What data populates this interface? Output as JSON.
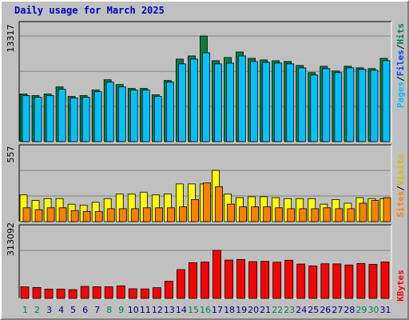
{
  "title": "Daily usage for March 2025",
  "colors": {
    "hits": "#00a0e0",
    "files": "#0040ff",
    "pages": "#00c0ff",
    "hits_bar": "#008040",
    "files_bar": "#00c0ff",
    "visits_bar": "#ffff00",
    "sites_bar": "#ff8000",
    "kbytes_bar": "#ff0000",
    "weekend_label": "#00805c",
    "weekday_label": "#000080"
  },
  "axis_labels": {
    "top_max": "13317",
    "mid_max": "557",
    "bottom_max": "313092",
    "right_top": [
      "Pages",
      "/",
      "Files",
      "/",
      "Hits"
    ],
    "right_mid": [
      "Sites",
      "/",
      "Visits"
    ],
    "right_bottom": [
      "KBytes"
    ]
  },
  "chart_data": {
    "type": "bar",
    "title": "Daily usage for March 2025",
    "categories": [
      "1",
      "2",
      "3",
      "4",
      "5",
      "6",
      "7",
      "8",
      "9",
      "10",
      "11",
      "12",
      "13",
      "14",
      "15",
      "16",
      "17",
      "18",
      "19",
      "20",
      "21",
      "22",
      "23",
      "24",
      "25",
      "26",
      "27",
      "28",
      "29",
      "30",
      "31"
    ],
    "weekend_days": [
      "1",
      "2",
      "8",
      "9",
      "15",
      "16",
      "22",
      "23",
      "29",
      "30"
    ],
    "panels": [
      {
        "name": "hits-files-pages",
        "ymax": 13317,
        "series": [
          {
            "name": "Hits",
            "values": [
              6000,
              5800,
              6000,
              6900,
              5700,
              5800,
              6500,
              7800,
              7200,
              6700,
              6700,
              5900,
              7700,
              10400,
              10800,
              13317,
              10200,
              10600,
              11300,
              10500,
              10300,
              10200,
              10100,
              9600,
              8700,
              9500,
              8900,
              9500,
              9300,
              9200,
              10500
            ]
          },
          {
            "name": "Files",
            "values": [
              5800,
              5600,
              5800,
              6600,
              5500,
              5600,
              6300,
              7500,
              6900,
              6500,
              6500,
              5700,
              7500,
              9800,
              10400,
              11200,
              9800,
              9900,
              10800,
              10100,
              10000,
              9900,
              9800,
              9300,
              8400,
              9200,
              8700,
              9300,
              9100,
              9000,
              10200
            ]
          },
          {
            "name": "Pages",
            "values": [
              5800,
              5600,
              5800,
              6600,
              5500,
              5600,
              6300,
              7500,
              6900,
              6500,
              6500,
              5700,
              7500,
              9800,
              10400,
              11200,
              9800,
              9900,
              10800,
              10100,
              10000,
              9900,
              9800,
              9300,
              8400,
              9200,
              8700,
              9300,
              9100,
              9000,
              10200
            ]
          }
        ]
      },
      {
        "name": "visits-sites",
        "ymax": 557,
        "series": [
          {
            "name": "Visits",
            "values": [
              290,
              230,
              250,
              250,
              190,
              180,
              210,
              250,
              300,
              300,
              320,
              290,
              300,
              410,
              410,
              410,
              557,
              300,
              260,
              270,
              270,
              260,
              250,
              250,
              250,
              190,
              240,
              200,
              260,
              250,
              250
            ]
          },
          {
            "name": "Sites",
            "values": [
              150,
              130,
              150,
              150,
              120,
              110,
              110,
              140,
              140,
              140,
              150,
              150,
              150,
              160,
              240,
              420,
              380,
              190,
              160,
              160,
              160,
              150,
              140,
              140,
              140,
              150,
              140,
              140,
              200,
              230,
              260
            ]
          }
        ]
      },
      {
        "name": "kbytes",
        "ymax": 313092,
        "series": [
          {
            "name": "KBytes",
            "values": [
              75000,
              71000,
              61000,
              61000,
              57000,
              78000,
              76000,
              76000,
              82000,
              63000,
              62000,
              70000,
              112000,
              188000,
              233000,
              237000,
              313092,
              250000,
              254000,
              240000,
              242000,
              236000,
              249000,
              224000,
              212000,
              226000,
              225000,
              218000,
              228000,
              222000,
              238000
            ]
          }
        ]
      }
    ]
  }
}
